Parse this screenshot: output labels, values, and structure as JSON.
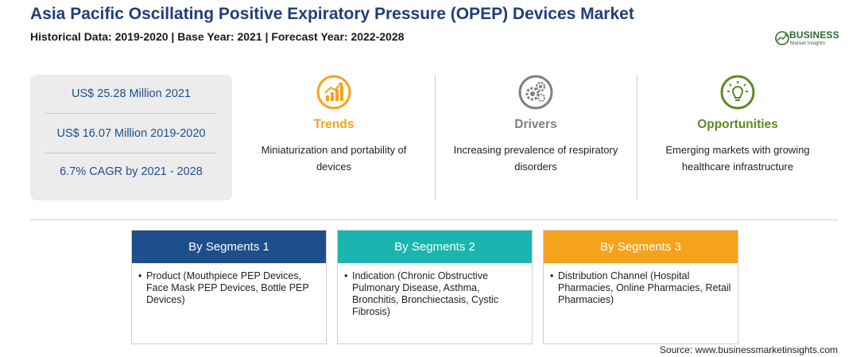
{
  "header": {
    "title": "Asia Pacific Oscillating Positive Expiratory Pressure (OPEP) Devices Market",
    "subtitle": "Historical Data: 2019-2020 | Base Year: 2021 | Forecast Year: 2022-2028"
  },
  "logo": {
    "name": "BUSINESS",
    "tagline": "Market Insights"
  },
  "stats": {
    "market_2021": "US$ 25.28 Million 2021",
    "market_hist": "US$ 16.07 Million 2019-2020",
    "cagr": "6.7% CAGR by 2021 - 2028"
  },
  "pillars": [
    {
      "icon": "growth-chart-icon",
      "title": "Trends",
      "desc": "Miniaturization and portability of devices",
      "color": "#f5a31a"
    },
    {
      "icon": "gears-icon",
      "title": "Drivers",
      "desc": "Increasing prevalence of respiratory disorders",
      "color": "#7f7f7f"
    },
    {
      "icon": "lightbulb-icon",
      "title": "Opportunities",
      "desc": "Emerging markets with growing healthcare infrastructure",
      "color": "#5d8a24"
    }
  ],
  "segments": [
    {
      "title": "By Segments 1",
      "color": "#1f4e8c",
      "item": "Product (Mouthpiece PEP Devices, Face Mask PEP Devices, Bottle PEP Devices)"
    },
    {
      "title": "By Segments 2",
      "color": "#1bb5b0",
      "item": "Indication (Chronic Obstructive Pulmonary Disease, Asthma, Bronchitis, Bronchiectasis, Cystic Fibrosis)"
    },
    {
      "title": "By Segments 3",
      "color": "#f5a31a",
      "item": "Distribution Channel (Hospital Pharmacies, Online Pharmacies, Retail Pharmacies)"
    }
  ],
  "footer": {
    "source": "Source: www.businessmarketinsights.com"
  }
}
